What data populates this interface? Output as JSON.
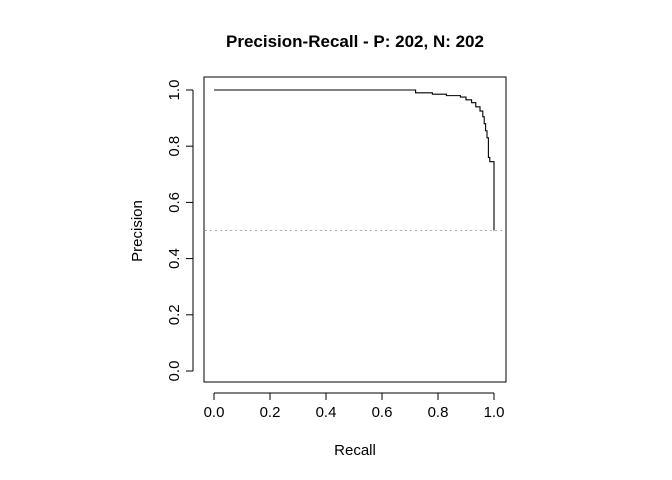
{
  "chart_data": {
    "type": "line",
    "title": "Precision-Recall - P: 202, N: 202",
    "xlabel": "Recall",
    "ylabel": "Precision",
    "xlim": [
      0,
      1
    ],
    "ylim": [
      0,
      1
    ],
    "x_ticks": [
      "0.0",
      "0.2",
      "0.4",
      "0.6",
      "0.8",
      "1.0"
    ],
    "y_ticks": [
      "0.0",
      "0.2",
      "0.4",
      "0.6",
      "0.8",
      "1.0"
    ],
    "grid": false,
    "baseline": {
      "style": "dotted",
      "y": 0.5
    },
    "series": [
      {
        "x": [
          0.0,
          0.72,
          0.72,
          0.78,
          0.78,
          0.83,
          0.83,
          0.88,
          0.88,
          0.9,
          0.9,
          0.92,
          0.92,
          0.935,
          0.935,
          0.95,
          0.95,
          0.96,
          0.96,
          0.965,
          0.965,
          0.97,
          0.97,
          0.975,
          0.975,
          0.98,
          0.98,
          0.985,
          0.985,
          1.0,
          1.0
        ],
        "y": [
          1.0,
          1.0,
          0.99,
          0.99,
          0.985,
          0.985,
          0.98,
          0.98,
          0.975,
          0.975,
          0.965,
          0.965,
          0.955,
          0.955,
          0.94,
          0.94,
          0.925,
          0.925,
          0.905,
          0.905,
          0.88,
          0.88,
          0.855,
          0.855,
          0.83,
          0.83,
          0.76,
          0.76,
          0.745,
          0.745,
          0.5
        ]
      }
    ]
  }
}
